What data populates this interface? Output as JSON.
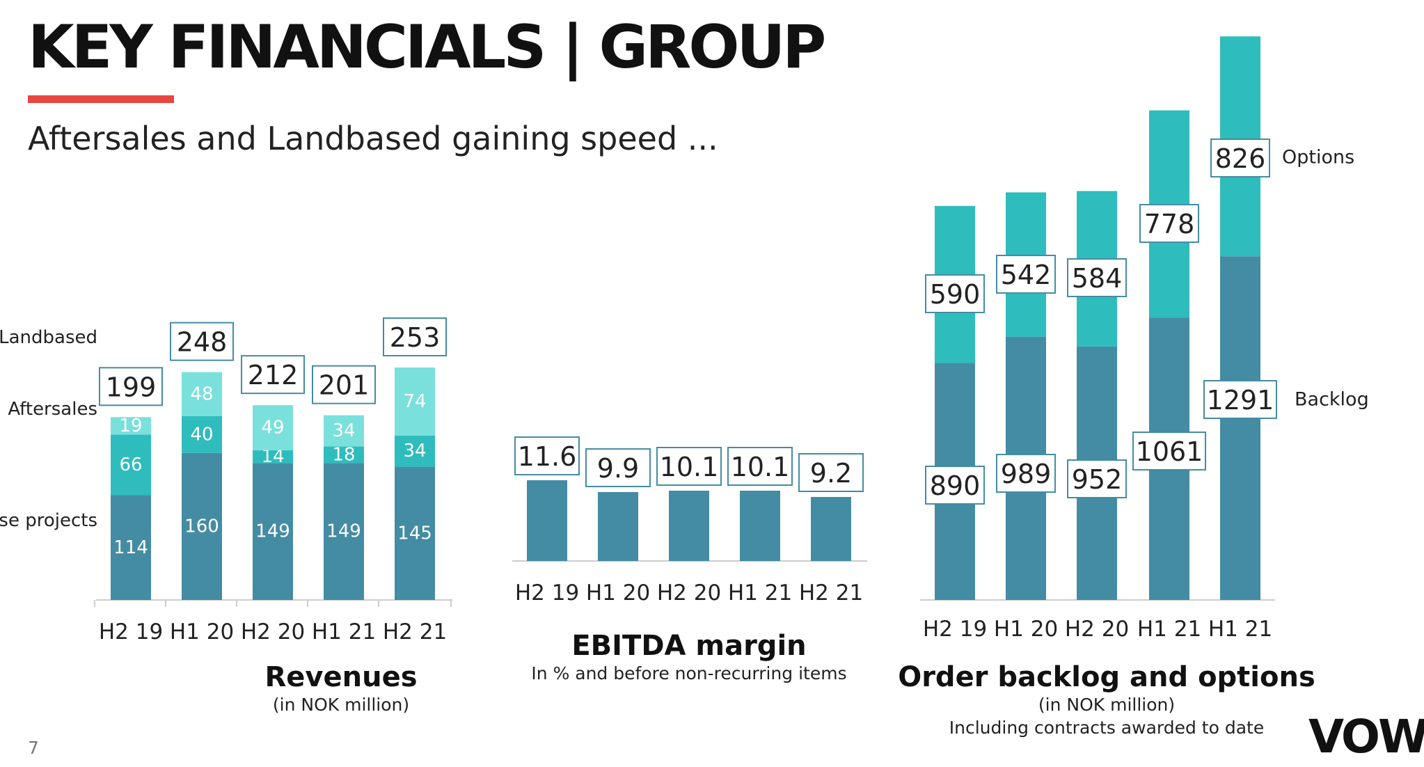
{
  "header": {
    "title": "KEY FINANCIALS | GROUP",
    "subtitle": "Aftersales and Landbased gaining speed ...",
    "accent_color": "#e8473f"
  },
  "colors": {
    "cruise": "#448ca3",
    "aftersales": "#2fbcbc",
    "landbased": "#7ae0dc",
    "options": "#2fbcbc",
    "backlog": "#448ca3",
    "box_border": "#448ca3"
  },
  "chart_data": [
    {
      "type": "bar",
      "stacked": true,
      "categories": [
        "H2 19",
        "H1 20",
        "H2 20",
        "H1 21",
        "H2 21"
      ],
      "series": [
        {
          "name": "ise projects",
          "values": [
            114,
            160,
            149,
            149,
            145
          ]
        },
        {
          "name": "Aftersales",
          "values": [
            66,
            40,
            14,
            18,
            34
          ]
        },
        {
          "name": "Landbased",
          "values": [
            19,
            48,
            49,
            34,
            74
          ]
        }
      ],
      "totals": [
        199,
        248,
        212,
        201,
        253
      ],
      "title": "Revenues",
      "subtitle": "(in NOK million)",
      "legend_placement": "left"
    },
    {
      "type": "bar",
      "categories": [
        "H2 19",
        "H1 20",
        "H2 20",
        "H1 21",
        "H2 21"
      ],
      "values": [
        11.6,
        9.9,
        10.1,
        10.1,
        9.2
      ],
      "title": "EBITDA margin",
      "subtitle": "In % and before non-recurring items"
    },
    {
      "type": "bar",
      "stacked": true,
      "categories": [
        "H2 19",
        "H1 20",
        "H2 20",
        "H1 21",
        "H1 21"
      ],
      "series": [
        {
          "name": "Backlog",
          "values": [
            890,
            989,
            952,
            1061,
            1291
          ]
        },
        {
          "name": "Options",
          "values": [
            590,
            542,
            584,
            778,
            826
          ]
        }
      ],
      "title": "Order backlog and options",
      "subtitle": "(in NOK million)",
      "subtitle2": "Including contracts awarded to date",
      "legend_placement": "right"
    }
  ],
  "footer": {
    "page_number": "7",
    "logo": "VOW"
  }
}
